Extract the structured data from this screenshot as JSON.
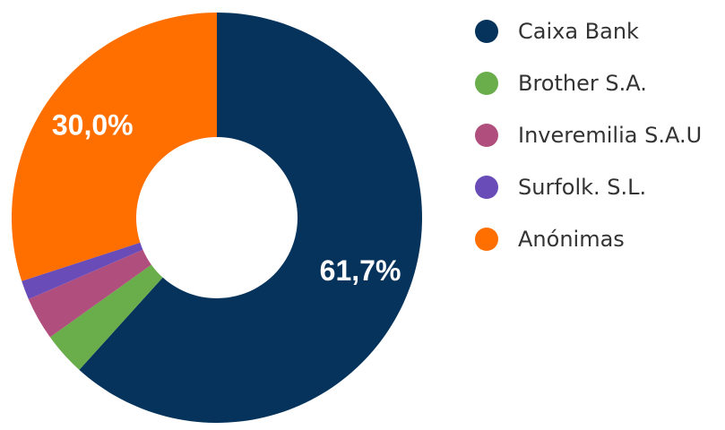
{
  "chart_data": {
    "type": "pie",
    "donut": true,
    "labels": [
      "Caixa Bank",
      "Brother S.A.",
      "Inveremilia S.A.U",
      "Surfolk. S.L.",
      "Anónimas"
    ],
    "values": [
      61.7,
      3.4,
      3.4,
      1.5,
      30.0
    ],
    "colors": [
      "#05335b",
      "#6aad4b",
      "#b04f7e",
      "#6a4cb8",
      "#ff6f00"
    ],
    "data_labels": [
      "61,7%",
      "",
      "",
      "",
      "30,0%"
    ],
    "legend_position": "right",
    "start_angle_deg": 0,
    "direction": "clockwise"
  }
}
